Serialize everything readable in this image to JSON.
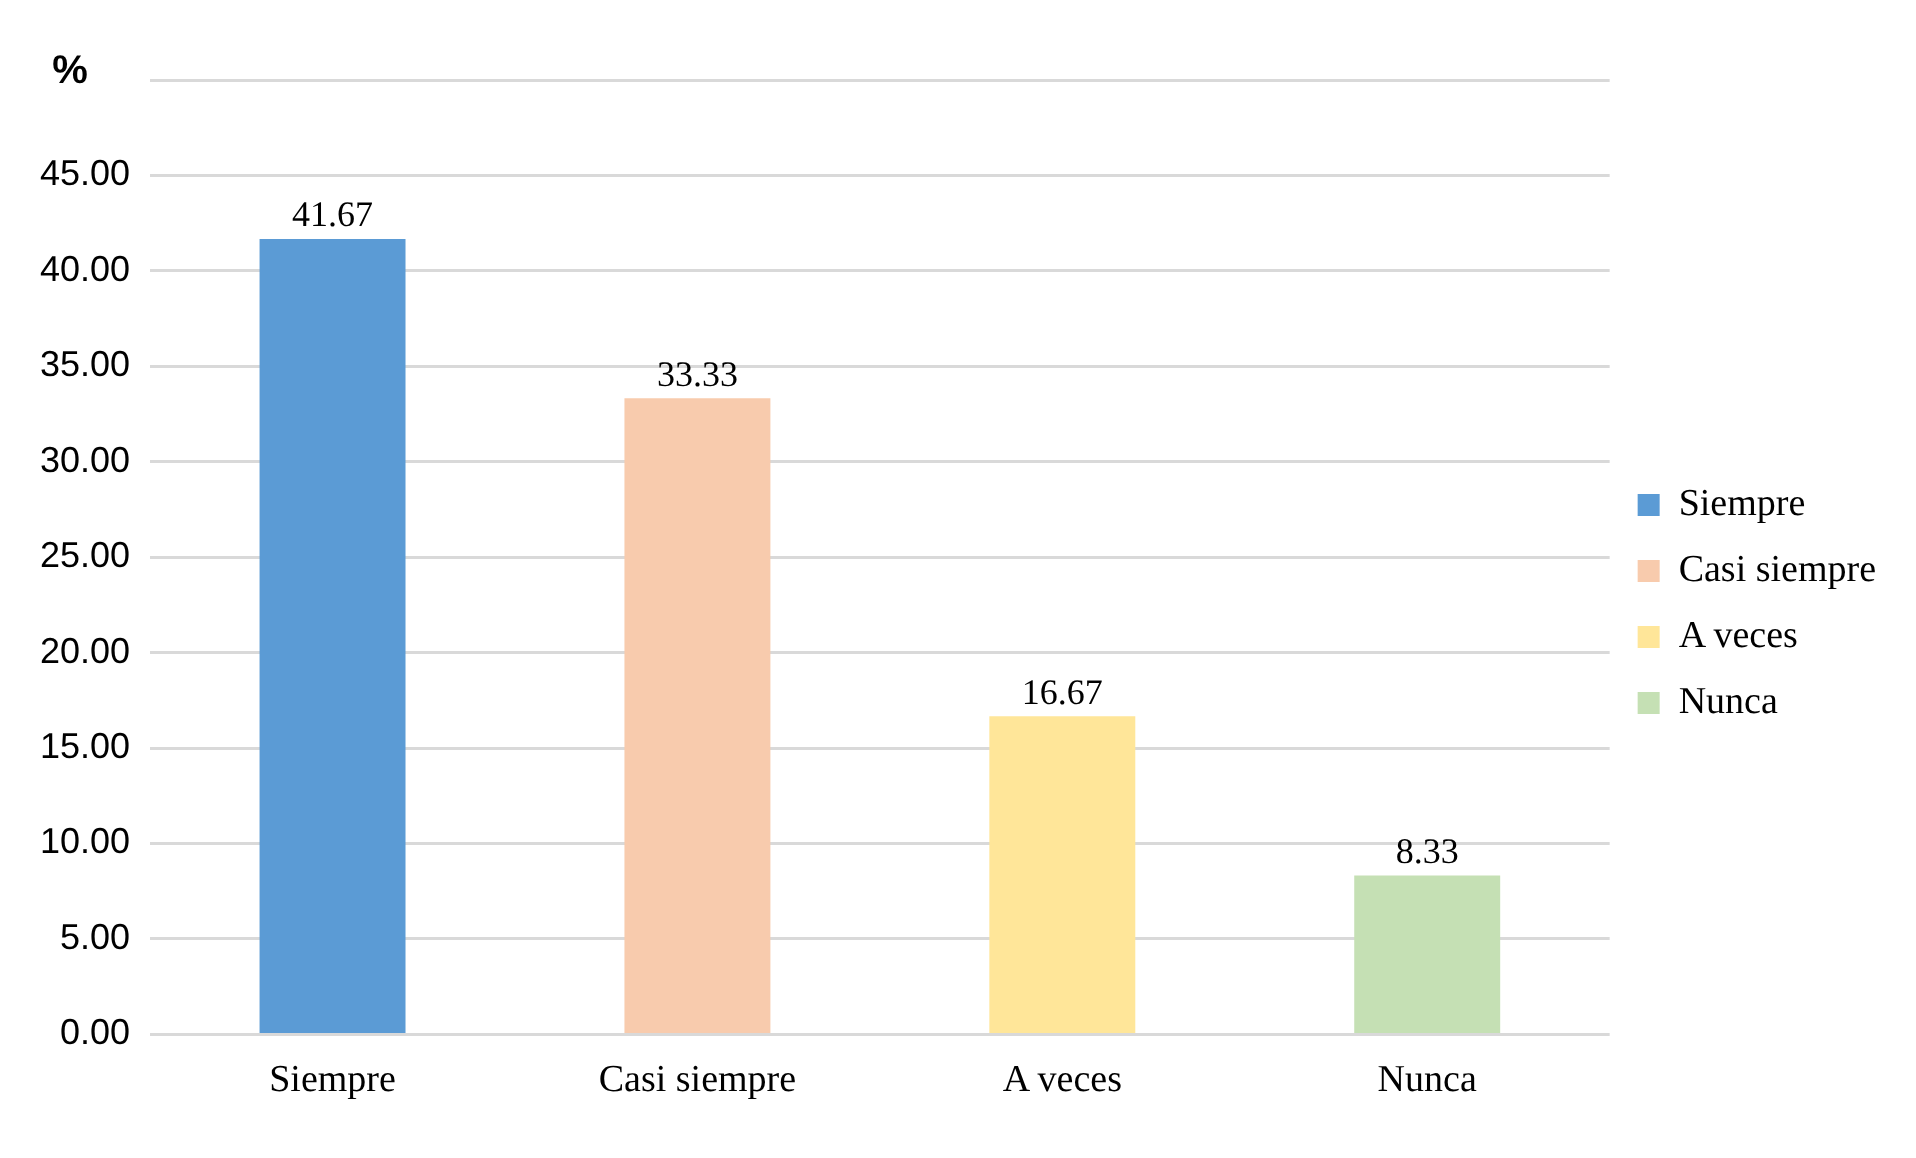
{
  "chart_data": {
    "type": "bar",
    "ylabel": "%",
    "categories": [
      "Siempre",
      "Casi siempre",
      "A veces",
      "Nunca"
    ],
    "series": [
      {
        "name": "Siempre",
        "color": "#5b9bd5",
        "values": [
          41.67,
          null,
          null,
          null
        ]
      },
      {
        "name": "Casi siempre",
        "color": "#f8cbad",
        "values": [
          null,
          33.33,
          null,
          null
        ]
      },
      {
        "name": "A veces",
        "color": "#ffe699",
        "values": [
          null,
          null,
          16.67,
          null
        ]
      },
      {
        "name": "Nunca",
        "color": "#c5e0b4",
        "values": [
          null,
          null,
          null,
          8.33
        ]
      }
    ],
    "ylim": [
      0,
      50
    ],
    "yticks": [
      {
        "value": 0,
        "label": "0.00"
      },
      {
        "value": 5,
        "label": "5.00"
      },
      {
        "value": 10,
        "label": "10.00"
      },
      {
        "value": 15,
        "label": "15.00"
      },
      {
        "value": 20,
        "label": "20.00"
      },
      {
        "value": 25,
        "label": "25.00"
      },
      {
        "value": 30,
        "label": "30.00"
      },
      {
        "value": 35,
        "label": "35.00"
      },
      {
        "value": 40,
        "label": "40.00"
      },
      {
        "value": 45,
        "label": "45.00"
      },
      {
        "value": 50,
        "label": null
      }
    ],
    "grid": "y",
    "legend": "right",
    "data_labels": true
  }
}
